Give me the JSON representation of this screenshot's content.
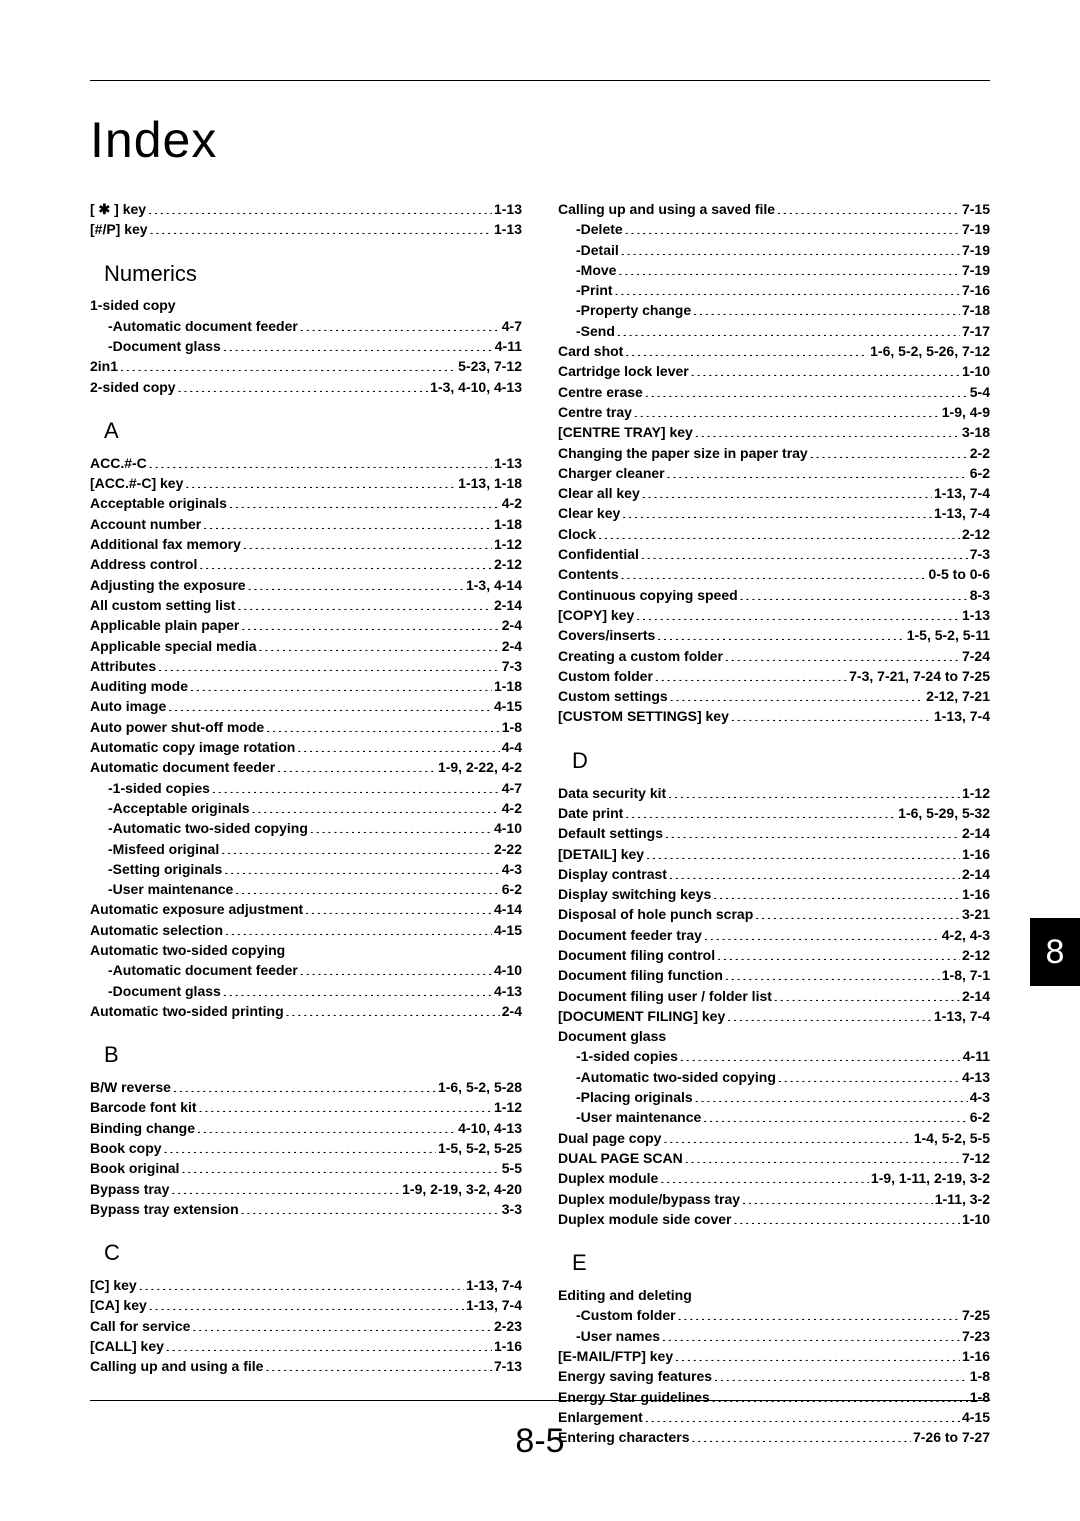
{
  "title": "Index",
  "tab": "8",
  "pageNumber": "8-5",
  "columns": [
    [
      {
        "type": "entry",
        "label": "[ ✱ ] key",
        "pages": "1-13"
      },
      {
        "type": "entry",
        "label": "[#/P] key",
        "pages": "1-13"
      },
      {
        "type": "heading",
        "label": "Numerics"
      },
      {
        "type": "entry",
        "label": "1-sided copy",
        "noPages": true
      },
      {
        "type": "entry",
        "sub": true,
        "label": "-Automatic document feeder",
        "pages": "4-7"
      },
      {
        "type": "entry",
        "sub": true,
        "label": "-Document glass",
        "pages": "4-11"
      },
      {
        "type": "entry",
        "label": "2in1",
        "pages": "5-23, 7-12"
      },
      {
        "type": "entry",
        "label": "2-sided copy",
        "pages": "1-3, 4-10, 4-13"
      },
      {
        "type": "heading",
        "label": "A"
      },
      {
        "type": "entry",
        "label": "ACC.#-C",
        "pages": "1-13"
      },
      {
        "type": "entry",
        "label": "[ACC.#-C] key",
        "pages": "1-13, 1-18"
      },
      {
        "type": "entry",
        "label": "Acceptable originals",
        "pages": "4-2"
      },
      {
        "type": "entry",
        "label": "Account number",
        "pages": "1-18"
      },
      {
        "type": "entry",
        "label": "Additional fax memory",
        "pages": "1-12"
      },
      {
        "type": "entry",
        "label": "Address control",
        "pages": "2-12"
      },
      {
        "type": "entry",
        "label": "Adjusting the exposure",
        "pages": "1-3, 4-14"
      },
      {
        "type": "entry",
        "label": "All custom setting list",
        "pages": "2-14"
      },
      {
        "type": "entry",
        "label": "Applicable plain paper",
        "pages": "2-4"
      },
      {
        "type": "entry",
        "label": "Applicable special media",
        "pages": "2-4"
      },
      {
        "type": "entry",
        "label": "Attributes",
        "pages": "7-3"
      },
      {
        "type": "entry",
        "label": "Auditing mode",
        "pages": "1-18"
      },
      {
        "type": "entry",
        "label": "Auto image",
        "pages": "4-15"
      },
      {
        "type": "entry",
        "label": "Auto power shut-off mode",
        "pages": "1-8"
      },
      {
        "type": "entry",
        "label": "Automatic copy image rotation",
        "pages": "4-4"
      },
      {
        "type": "entry",
        "label": "Automatic document feeder",
        "pages": "1-9, 2-22, 4-2"
      },
      {
        "type": "entry",
        "sub": true,
        "label": "-1-sided copies",
        "pages": "4-7"
      },
      {
        "type": "entry",
        "sub": true,
        "label": "-Acceptable originals",
        "pages": "4-2"
      },
      {
        "type": "entry",
        "sub": true,
        "label": "-Automatic two-sided copying",
        "pages": "4-10"
      },
      {
        "type": "entry",
        "sub": true,
        "label": "-Misfeed original",
        "pages": "2-22"
      },
      {
        "type": "entry",
        "sub": true,
        "label": "-Setting originals",
        "pages": "4-3"
      },
      {
        "type": "entry",
        "sub": true,
        "label": "-User maintenance",
        "pages": "6-2"
      },
      {
        "type": "entry",
        "label": "Automatic exposure adjustment",
        "pages": "4-14"
      },
      {
        "type": "entry",
        "label": "Automatic selection",
        "pages": "4-15"
      },
      {
        "type": "entry",
        "label": "Automatic two-sided copying",
        "noPages": true
      },
      {
        "type": "entry",
        "sub": true,
        "label": "-Automatic document feeder",
        "pages": "4-10"
      },
      {
        "type": "entry",
        "sub": true,
        "label": "-Document glass",
        "pages": "4-13"
      },
      {
        "type": "entry",
        "label": "Automatic two-sided printing",
        "pages": "2-4"
      },
      {
        "type": "heading",
        "label": "B"
      },
      {
        "type": "entry",
        "label": "B/W reverse",
        "pages": "1-6, 5-2, 5-28"
      },
      {
        "type": "entry",
        "label": "Barcode font kit",
        "pages": "1-12"
      },
      {
        "type": "entry",
        "label": "Binding change",
        "pages": "4-10, 4-13"
      },
      {
        "type": "entry",
        "label": "Book copy",
        "pages": "1-5, 5-2, 5-25"
      },
      {
        "type": "entry",
        "label": "Book original",
        "pages": "5-5"
      },
      {
        "type": "entry",
        "label": "Bypass tray",
        "pages": "1-9, 2-19, 3-2, 4-20"
      },
      {
        "type": "entry",
        "label": "Bypass tray extension",
        "pages": "3-3"
      },
      {
        "type": "heading",
        "label": "C"
      },
      {
        "type": "entry",
        "label": "[C] key",
        "pages": "1-13, 7-4"
      },
      {
        "type": "entry",
        "label": "[CA] key",
        "pages": "1-13, 7-4"
      },
      {
        "type": "entry",
        "label": "Call for service",
        "pages": "2-23"
      },
      {
        "type": "entry",
        "label": "[CALL] key",
        "pages": "1-16"
      },
      {
        "type": "entry",
        "label": "Calling up and using a file",
        "pages": "7-13"
      }
    ],
    [
      {
        "type": "entry",
        "label": "Calling up and using a saved file",
        "pages": "7-15"
      },
      {
        "type": "entry",
        "sub": true,
        "label": "-Delete",
        "pages": "7-19"
      },
      {
        "type": "entry",
        "sub": true,
        "label": "-Detail",
        "pages": "7-19"
      },
      {
        "type": "entry",
        "sub": true,
        "label": "-Move",
        "pages": "7-19"
      },
      {
        "type": "entry",
        "sub": true,
        "label": "-Print",
        "pages": "7-16"
      },
      {
        "type": "entry",
        "sub": true,
        "label": "-Property change",
        "pages": "7-18"
      },
      {
        "type": "entry",
        "sub": true,
        "label": "-Send",
        "pages": "7-17"
      },
      {
        "type": "entry",
        "label": "Card shot",
        "pages": "1-6, 5-2, 5-26, 7-12"
      },
      {
        "type": "entry",
        "label": "Cartridge lock lever",
        "pages": "1-10"
      },
      {
        "type": "entry",
        "label": "Centre erase",
        "pages": "5-4"
      },
      {
        "type": "entry",
        "label": "Centre tray",
        "pages": "1-9, 4-9"
      },
      {
        "type": "entry",
        "label": "[CENTRE TRAY] key",
        "pages": "3-18"
      },
      {
        "type": "entry",
        "label": "Changing the paper size in paper tray",
        "pages": "2-2"
      },
      {
        "type": "entry",
        "label": "Charger cleaner",
        "pages": "6-2"
      },
      {
        "type": "entry",
        "label": "Clear all key",
        "pages": "1-13, 7-4"
      },
      {
        "type": "entry",
        "label": "Clear key",
        "pages": "1-13, 7-4"
      },
      {
        "type": "entry",
        "label": "Clock",
        "pages": "2-12"
      },
      {
        "type": "entry",
        "label": "Confidential",
        "pages": "7-3"
      },
      {
        "type": "entry",
        "label": "Contents",
        "pages": "0-5 to 0-6"
      },
      {
        "type": "entry",
        "label": "Continuous copying speed",
        "pages": "8-3"
      },
      {
        "type": "entry",
        "label": "[COPY] key",
        "pages": "1-13"
      },
      {
        "type": "entry",
        "label": "Covers/inserts",
        "pages": "1-5, 5-2, 5-11"
      },
      {
        "type": "entry",
        "label": "Creating a custom folder",
        "pages": "7-24"
      },
      {
        "type": "entry",
        "label": "Custom folder",
        "pages": "7-3, 7-21, 7-24 to 7-25"
      },
      {
        "type": "entry",
        "label": "Custom settings",
        "pages": "2-12, 7-21"
      },
      {
        "type": "entry",
        "label": "[CUSTOM SETTINGS] key",
        "pages": "1-13, 7-4"
      },
      {
        "type": "heading",
        "label": "D"
      },
      {
        "type": "entry",
        "label": "Data security kit",
        "pages": "1-12"
      },
      {
        "type": "entry",
        "label": "Date print",
        "pages": "1-6, 5-29, 5-32"
      },
      {
        "type": "entry",
        "label": "Default settings",
        "pages": "2-14"
      },
      {
        "type": "entry",
        "label": "[DETAIL] key",
        "pages": "1-16"
      },
      {
        "type": "entry",
        "label": "Display contrast",
        "pages": "2-14"
      },
      {
        "type": "entry",
        "label": "Display switching keys",
        "pages": "1-16"
      },
      {
        "type": "entry",
        "label": "Disposal of hole punch scrap",
        "pages": "3-21"
      },
      {
        "type": "entry",
        "label": "Document feeder tray",
        "pages": "4-2, 4-3"
      },
      {
        "type": "entry",
        "label": "Document filing control",
        "pages": "2-12"
      },
      {
        "type": "entry",
        "label": "Document filing function",
        "pages": "1-8, 7-1"
      },
      {
        "type": "entry",
        "label": "Document filing user / folder list",
        "pages": "2-14"
      },
      {
        "type": "entry",
        "label": "[DOCUMENT FILING] key",
        "pages": "1-13, 7-4"
      },
      {
        "type": "entry",
        "label": "Document glass",
        "noPages": true
      },
      {
        "type": "entry",
        "sub": true,
        "label": "-1-sided copies",
        "pages": "4-11"
      },
      {
        "type": "entry",
        "sub": true,
        "label": "-Automatic two-sided copying",
        "pages": "4-13"
      },
      {
        "type": "entry",
        "sub": true,
        "label": "-Placing originals",
        "pages": "4-3"
      },
      {
        "type": "entry",
        "sub": true,
        "label": "-User maintenance",
        "pages": "6-2"
      },
      {
        "type": "entry",
        "label": "Dual page copy",
        "pages": "1-4, 5-2, 5-5"
      },
      {
        "type": "entry",
        "label": "DUAL PAGE SCAN",
        "pages": "7-12"
      },
      {
        "type": "entry",
        "label": "Duplex module",
        "pages": "1-9, 1-11, 2-19, 3-2"
      },
      {
        "type": "entry",
        "label": "Duplex module/bypass tray",
        "pages": "1-11, 3-2"
      },
      {
        "type": "entry",
        "label": "Duplex module side cover",
        "pages": "1-10"
      },
      {
        "type": "heading",
        "label": "E"
      },
      {
        "type": "entry",
        "label": "Editing and deleting",
        "noPages": true
      },
      {
        "type": "entry",
        "sub": true,
        "label": "-Custom folder",
        "pages": "7-25"
      },
      {
        "type": "entry",
        "sub": true,
        "label": "-User names",
        "pages": "7-23"
      },
      {
        "type": "entry",
        "label": "[E-MAIL/FTP] key",
        "pages": "1-16"
      },
      {
        "type": "entry",
        "label": "Energy saving features",
        "pages": "1-8"
      },
      {
        "type": "entry",
        "label": "Energy Star guidelines",
        "pages": "1-8"
      },
      {
        "type": "entry",
        "label": "Enlargement",
        "pages": "4-15"
      },
      {
        "type": "entry",
        "label": "Entering characters",
        "pages": "7-26 to 7-27"
      }
    ]
  ]
}
